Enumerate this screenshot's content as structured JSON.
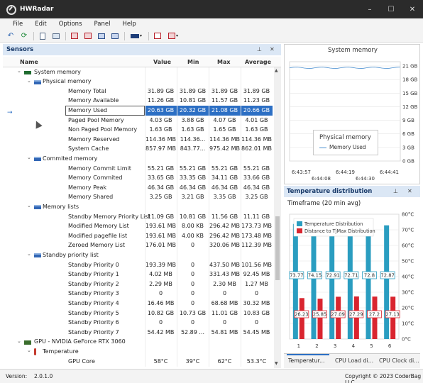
{
  "window": {
    "title": "HWRadar",
    "minimize": "–",
    "maximize": "☐",
    "close": "✕"
  },
  "menu": [
    "File",
    "Edit",
    "Options",
    "Panel",
    "Help"
  ],
  "sensors": {
    "title": "Sensors",
    "pin": "📌",
    "close": "✕",
    "columns": {
      "name": "Name",
      "value": "Value",
      "min": "Min",
      "max": "Max",
      "avg": "Average"
    },
    "rows": [
      {
        "level": 0,
        "type": "group",
        "icon": "memory-icon",
        "name": "System memory",
        "value": "",
        "min": "",
        "max": "",
        "avg": ""
      },
      {
        "level": 1,
        "type": "group",
        "icon": "list-icon",
        "name": "Physical memory",
        "value": "",
        "min": "",
        "max": "",
        "avg": ""
      },
      {
        "level": 2,
        "type": "item",
        "name": "Memory Total",
        "value": "31.89 GB",
        "min": "31.89 GB",
        "max": "31.89 GB",
        "avg": "31.89 GB"
      },
      {
        "level": 2,
        "type": "item",
        "name": "Memory Available",
        "value": "11.26 GB",
        "min": "10.81 GB",
        "max": "11.57 GB",
        "avg": "11.23 GB"
      },
      {
        "level": 2,
        "type": "item",
        "name": "Memory Used",
        "value": "20.63 GB",
        "min": "20.32 GB",
        "max": "21.08 GB",
        "avg": "20.66 GB",
        "selected": true
      },
      {
        "level": 2,
        "type": "item",
        "name": "Paged Pool Memory",
        "value": "4.03 GB",
        "min": "3.88 GB",
        "max": "4.07 GB",
        "avg": "4.01 GB"
      },
      {
        "level": 2,
        "type": "item",
        "name": "Non Paged Pool Memory",
        "value": "1.63 GB",
        "min": "1.63 GB",
        "max": "1.65 GB",
        "avg": "1.63 GB"
      },
      {
        "level": 2,
        "type": "item",
        "name": "Memory Reserved",
        "value": "114.36 MB",
        "min": "114.36...",
        "max": "114.36 MB",
        "avg": "114.36 MB"
      },
      {
        "level": 2,
        "type": "item",
        "name": "System Cache",
        "value": "857.97 MB",
        "min": "843.77...",
        "max": "975.42 MB",
        "avg": "862.01 MB"
      },
      {
        "level": 1,
        "type": "group",
        "icon": "list-icon",
        "name": "Commited memory",
        "value": "",
        "min": "",
        "max": "",
        "avg": ""
      },
      {
        "level": 2,
        "type": "item",
        "name": "Memory Commit Limit",
        "value": "55.21 GB",
        "min": "55.21 GB",
        "max": "55.21 GB",
        "avg": "55.21 GB"
      },
      {
        "level": 2,
        "type": "item",
        "name": "Memory Commited",
        "value": "33.65 GB",
        "min": "33.35 GB",
        "max": "34.11 GB",
        "avg": "33.66 GB"
      },
      {
        "level": 2,
        "type": "item",
        "name": "Memory Peak",
        "value": "46.34 GB",
        "min": "46.34 GB",
        "max": "46.34 GB",
        "avg": "46.34 GB"
      },
      {
        "level": 2,
        "type": "item",
        "name": "Memory Shared",
        "value": "3.25 GB",
        "min": "3.21 GB",
        "max": "3.35 GB",
        "avg": "3.25 GB"
      },
      {
        "level": 1,
        "type": "group",
        "icon": "list-icon",
        "name": "Memory lists",
        "value": "",
        "min": "",
        "max": "",
        "avg": ""
      },
      {
        "level": 2,
        "type": "item",
        "name": "Standby Memory Priority List",
        "value": "11.09 GB",
        "min": "10.81 GB",
        "max": "11.56 GB",
        "avg": "11.11 GB"
      },
      {
        "level": 2,
        "type": "item",
        "name": "Modified Memory List",
        "value": "193.61 MB",
        "min": "8.00 KB",
        "max": "296.42 MB",
        "avg": "173.73 MB"
      },
      {
        "level": 2,
        "type": "item",
        "name": "Modified pagefile list",
        "value": "193.61 MB",
        "min": "4.00 KB",
        "max": "296.42 MB",
        "avg": "173.48 MB"
      },
      {
        "level": 2,
        "type": "item",
        "name": "Zeroed Memory List",
        "value": "176.01 MB",
        "min": "0",
        "max": "320.06 MB",
        "avg": "112.39 MB"
      },
      {
        "level": 1,
        "type": "group",
        "icon": "list-icon",
        "name": "Standby priority list",
        "value": "",
        "min": "",
        "max": "",
        "avg": ""
      },
      {
        "level": 2,
        "type": "item",
        "name": "Standby Priority 0",
        "value": "193.39 MB",
        "min": "0",
        "max": "437.50 MB",
        "avg": "101.56 MB"
      },
      {
        "level": 2,
        "type": "item",
        "name": "Standby Priority 1",
        "value": "4.02 MB",
        "min": "0",
        "max": "331.43 MB",
        "avg": "92.45 MB"
      },
      {
        "level": 2,
        "type": "item",
        "name": "Standby Priority 2",
        "value": "2.29 MB",
        "min": "0",
        "max": "2.30 MB",
        "avg": "1.27 MB"
      },
      {
        "level": 2,
        "type": "item",
        "name": "Standby Priority 3",
        "value": "0",
        "min": "0",
        "max": "0",
        "avg": "0"
      },
      {
        "level": 2,
        "type": "item",
        "name": "Standby Priority 4",
        "value": "16.46 MB",
        "min": "0",
        "max": "68.68 MB",
        "avg": "30.32 MB"
      },
      {
        "level": 2,
        "type": "item",
        "name": "Standby Priority 5",
        "value": "10.82 GB",
        "min": "10.73 GB",
        "max": "11.01 GB",
        "avg": "10.83 GB"
      },
      {
        "level": 2,
        "type": "item",
        "name": "Standby Priority 6",
        "value": "0",
        "min": "0",
        "max": "0",
        "avg": "0"
      },
      {
        "level": 2,
        "type": "item",
        "name": "Standby Priority 7",
        "value": "54.42 MB",
        "min": "52.89 ...",
        "max": "54.81 MB",
        "avg": "54.45 MB"
      },
      {
        "level": 0,
        "type": "group",
        "icon": "gpu-icon",
        "name": "GPU - NVIDIA GeForce RTX 3060",
        "value": "",
        "min": "",
        "max": "",
        "avg": ""
      },
      {
        "level": 1,
        "type": "group",
        "icon": "thermometer-icon",
        "name": "Temperature",
        "value": "",
        "min": "",
        "max": "",
        "avg": ""
      },
      {
        "level": 2,
        "type": "item",
        "name": "GPU Core",
        "value": "58°C",
        "min": "39°C",
        "max": "62°C",
        "avg": "53.3°C"
      }
    ]
  },
  "system_memory_chart": {
    "title": "System memory",
    "y_ticks": [
      "21 GB",
      "18 GB",
      "15 GB",
      "12 GB",
      "9 GB",
      "6 GB",
      "3 GB",
      "0 GB"
    ],
    "x_ticks_top": [
      "6:43:57",
      "6:44:19",
      "6:44:41"
    ],
    "x_ticks_bottom": [
      "6:44:08",
      "6:44:30"
    ],
    "legend_title": "Physical memory",
    "legend_item": "Memory Used",
    "line_color": "#4a8fd0"
  },
  "temperature": {
    "title": "Temperature distribution",
    "pin": "📌",
    "close": "✕",
    "timeframe": "Timeframe (20 min avg)",
    "tabs": [
      "Temperatur...",
      "CPU Load di...",
      "CPU Clock di..."
    ]
  },
  "chart_data": {
    "type": "bar",
    "categories": [
      "1",
      "2",
      "3",
      "4",
      "5",
      "6"
    ],
    "series": [
      {
        "name": "Temperature Distribution",
        "color": "#2a9dc0",
        "values": [
          73.77,
          74.15,
          72.91,
          72.71,
          72.8,
          72.87
        ]
      },
      {
        "name": "Distance to TjMax Distribution",
        "color": "#d9252f",
        "values": [
          26.23,
          25.85,
          27.09,
          27.29,
          27.2,
          27.13
        ]
      }
    ],
    "y_ticks": [
      "80°C",
      "70°C",
      "60°C",
      "50°C",
      "40°C",
      "30°C",
      "20°C",
      "10°C",
      "0°C"
    ],
    "ylim": [
      0,
      80
    ],
    "legend": "top-left"
  },
  "status": {
    "version_label": "Version:",
    "version": "2.0.1.0",
    "copyright": "Copyright © 2023 CoderBag LLC"
  }
}
